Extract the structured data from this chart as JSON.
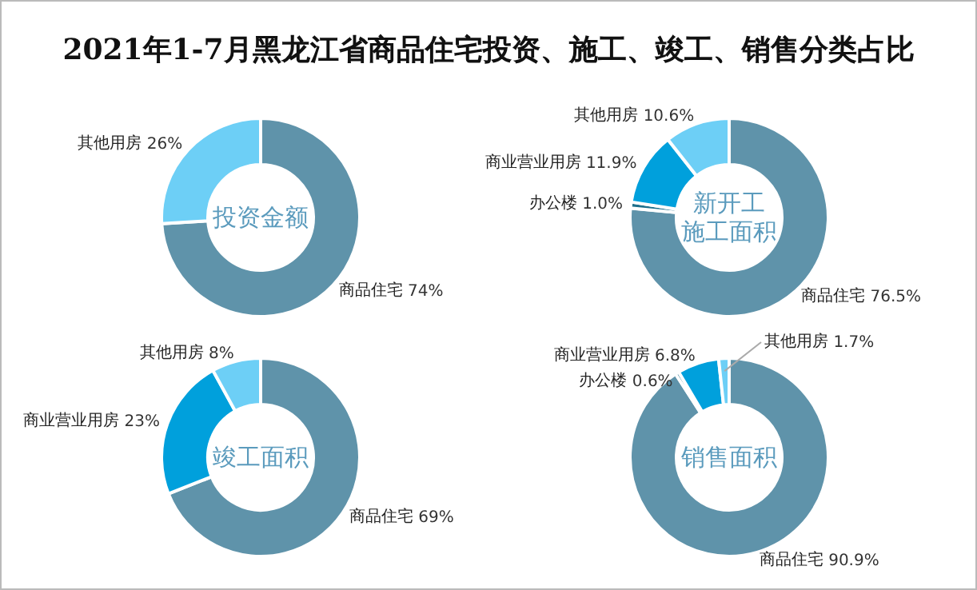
{
  "chart_data": [
    {
      "type": "donut",
      "title": "投资金额",
      "annotations": [
        "2021年1-7月黑龙江省商品住宅投资、施工、竣工、销售分类占比"
      ],
      "categories": [
        "商品住宅",
        "其他用房"
      ],
      "values": [
        74,
        26
      ],
      "value_labels": [
        "74%",
        "26%"
      ],
      "colors": [
        "#5f93aa",
        "#6dcff6"
      ]
    },
    {
      "type": "donut",
      "title": "新开工施工面积",
      "categories": [
        "商品住宅",
        "办公楼",
        "商业营业用房",
        "其他用房"
      ],
      "values": [
        76.5,
        1.0,
        11.9,
        10.6
      ],
      "value_labels": [
        "76.5%",
        "1.0%",
        "11.9%",
        "10.6%"
      ],
      "colors": [
        "#5f93aa",
        "#1f6f8b",
        "#00a0dc",
        "#6dcff6"
      ]
    },
    {
      "type": "donut",
      "title": "竣工面积",
      "categories": [
        "商品住宅",
        "商业营业用房",
        "其他用房"
      ],
      "values": [
        69,
        23,
        8
      ],
      "value_labels": [
        "69%",
        "23%",
        "8%"
      ],
      "colors": [
        "#5f93aa",
        "#00a0dc",
        "#6dcff6"
      ]
    },
    {
      "type": "donut",
      "title": "销售面积",
      "categories": [
        "商品住宅",
        "办公楼",
        "商业营业用房",
        "其他用房"
      ],
      "values": [
        90.9,
        0.6,
        6.8,
        1.7
      ],
      "value_labels": [
        "90.9%",
        "0.6%",
        "6.8%",
        "1.7%"
      ],
      "colors": [
        "#5f93aa",
        "#1f6f8b",
        "#00a0dc",
        "#6dcff6"
      ]
    }
  ]
}
